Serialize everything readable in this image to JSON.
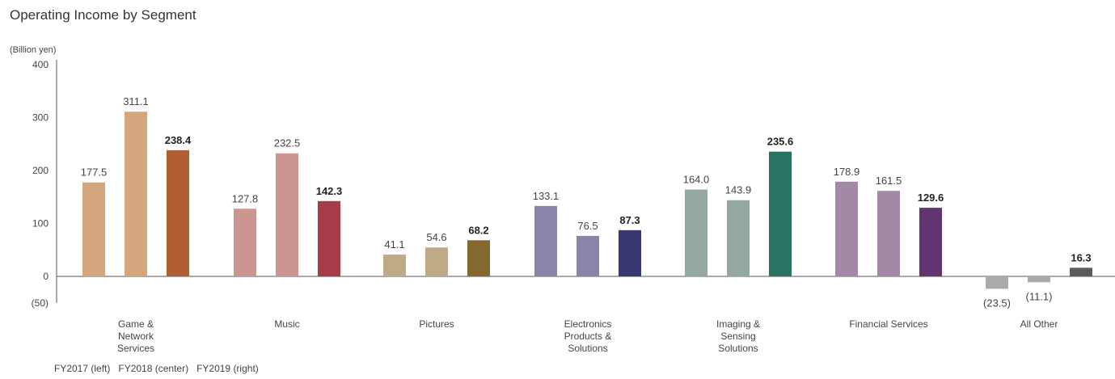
{
  "chart_data": {
    "type": "bar",
    "title": "Operating Income by Segment",
    "ylabel": "(Billion yen)",
    "ylim": [
      -50,
      400
    ],
    "yticks": [
      {
        "value": 400,
        "label": "400"
      },
      {
        "value": 300,
        "label": "300"
      },
      {
        "value": 200,
        "label": "200"
      },
      {
        "value": 100,
        "label": "100"
      },
      {
        "value": 0,
        "label": "0"
      },
      {
        "value": -50,
        "label": "(50)"
      }
    ],
    "legend_text": "FY2017 (left)   FY2018 (center)   FY2019 (right)",
    "series_names": [
      "FY2017 (left)",
      "FY2018 (center)",
      "FY2019 (right)"
    ],
    "categories": [
      {
        "lines": [
          "Game &",
          "Network",
          "Services"
        ],
        "values": [
          177.5,
          311.1,
          238.4
        ],
        "labels": [
          "177.5",
          "311.1",
          "238.4"
        ],
        "colors": [
          "#d4a680",
          "#d4a680",
          "#b05e34"
        ]
      },
      {
        "lines": [
          "Music"
        ],
        "values": [
          127.8,
          232.5,
          142.3
        ],
        "labels": [
          "127.8",
          "232.5",
          "142.3"
        ],
        "colors": [
          "#cb9591",
          "#cb9591",
          "#a73c4b"
        ]
      },
      {
        "lines": [
          "Pictures"
        ],
        "values": [
          41.1,
          54.6,
          68.2
        ],
        "labels": [
          "41.1",
          "54.6",
          "68.2"
        ],
        "colors": [
          "#c0aa85",
          "#c0aa85",
          "#856730"
        ]
      },
      {
        "lines": [
          "Electronics",
          "Products &",
          "Solutions"
        ],
        "values": [
          133.1,
          76.5,
          87.3
        ],
        "labels": [
          "133.1",
          "76.5",
          "87.3"
        ],
        "colors": [
          "#8b84a8",
          "#8b84a8",
          "#383872"
        ]
      },
      {
        "lines": [
          "Imaging &",
          "Sensing",
          "Solutions"
        ],
        "values": [
          164.0,
          143.9,
          235.6
        ],
        "labels": [
          "164.0",
          "143.9",
          "235.6"
        ],
        "colors": [
          "#93a89f",
          "#93a89f",
          "#2a7262"
        ]
      },
      {
        "lines": [
          "Financial Services"
        ],
        "values": [
          178.9,
          161.5,
          129.6
        ],
        "labels": [
          "178.9",
          "161.5",
          "129.6"
        ],
        "colors": [
          "#a489a6",
          "#a489a6",
          "#623470"
        ]
      },
      {
        "lines": [
          "All Other"
        ],
        "values": [
          -23.5,
          -11.1,
          16.3
        ],
        "labels": [
          "(23.5)",
          "(11.1)",
          "16.3"
        ],
        "colors": [
          "#aaaaaa",
          "#aaaaaa",
          "#5b5b5b"
        ]
      }
    ]
  }
}
